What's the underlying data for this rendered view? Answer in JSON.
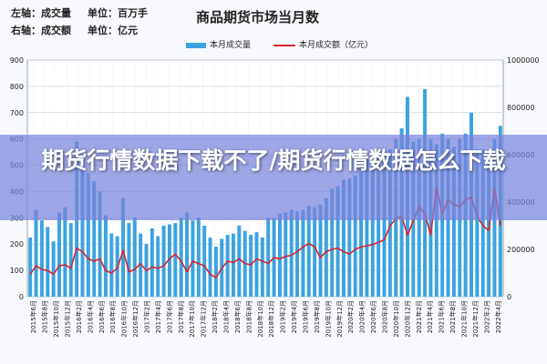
{
  "header": {
    "left_axis_line": "左轴：成交量",
    "left_unit_line": "单位：百万手",
    "right_axis_line": "右轴：成交额",
    "right_unit_line": "单位：亿元"
  },
  "colors": {
    "bar": "#3ba3e0",
    "line": "#d9232d",
    "grid": "#cfd6de"
  },
  "banner": {
    "text": "期货行情数据下载不了/期货行情数据怎么下载"
  },
  "chart_data": {
    "type": "bar",
    "title": "商品期货市场当月数",
    "series": [
      {
        "name": "本月成交量",
        "axis": "left",
        "type": "bar",
        "values": [
          225,
          330,
          290,
          265,
          210,
          320,
          340,
          280,
          590,
          520,
          470,
          440,
          400,
          310,
          240,
          230,
          375,
          280,
          300,
          240,
          200,
          260,
          230,
          270,
          275,
          280,
          300,
          320,
          290,
          300,
          270,
          225,
          190,
          220,
          235,
          240,
          270,
          250,
          235,
          245,
          225,
          300,
          300,
          315,
          320,
          330,
          325,
          330,
          345,
          340,
          350,
          375,
          410,
          420,
          445,
          450,
          460,
          500,
          520,
          500,
          550,
          540,
          560,
          600,
          640,
          760,
          590,
          600,
          790,
          600,
          580,
          620,
          600,
          570,
          600,
          620,
          700,
          560,
          560,
          560,
          600,
          650
        ]
      },
      {
        "name": "本月成交额（亿元）",
        "axis": "right",
        "type": "line",
        "values": [
          95000,
          130000,
          115000,
          110000,
          95000,
          130000,
          135000,
          120000,
          205000,
          190000,
          160000,
          150000,
          160000,
          110000,
          100000,
          120000,
          195000,
          105000,
          115000,
          140000,
          110000,
          125000,
          120000,
          130000,
          160000,
          180000,
          150000,
          105000,
          150000,
          140000,
          130000,
          95000,
          80000,
          120000,
          150000,
          145000,
          160000,
          140000,
          135000,
          160000,
          150000,
          140000,
          165000,
          160000,
          170000,
          175000,
          190000,
          210000,
          225000,
          210000,
          165000,
          190000,
          200000,
          205000,
          190000,
          180000,
          200000,
          210000,
          215000,
          220000,
          230000,
          240000,
          300000,
          330000,
          340000,
          260000,
          320000,
          380000,
          350000,
          260000,
          460000,
          350000,
          410000,
          390000,
          380000,
          410000,
          420000,
          340000,
          300000,
          280000,
          460000,
          300000
        ]
      }
    ],
    "x_labels": [
      "2015年6月",
      "2015年8月",
      "2015年10月",
      "2015年12月",
      "2016年2月",
      "2016年4月",
      "2016年6月",
      "2016年8月",
      "2016年10月",
      "2016年12月",
      "2017年2月",
      "2017年4月",
      "2017年6月",
      "2017年8月",
      "2017年10月",
      "2017年12月",
      "2018年2月",
      "2018年4月",
      "2018年6月",
      "2018年8月",
      "2018年10月",
      "2018年12月",
      "2019年2月",
      "2019年4月",
      "2019年6月",
      "2019年8月",
      "2019年10月",
      "2019年12月",
      "2020年2月",
      "2020年4月",
      "2020年6月",
      "2020年8月",
      "2020年10月",
      "2020年12月",
      "2021年2月",
      "2021年4月",
      "2021年6月",
      "2021年8月",
      "2021年10月",
      "2021年12月",
      "2022年2月",
      "2022年4月"
    ],
    "y_left_ticks": [
      "0",
      "100",
      "200",
      "300",
      "400",
      "500",
      "600",
      "700",
      "800",
      "900"
    ],
    "y_right_ticks": [
      "0",
      "200000",
      "400000",
      "600000",
      "800000",
      "1000000"
    ],
    "ylim_left": [
      0,
      900
    ],
    "ylim_right": [
      0,
      1000000
    ],
    "grid": true,
    "legend_position": "top-center"
  }
}
